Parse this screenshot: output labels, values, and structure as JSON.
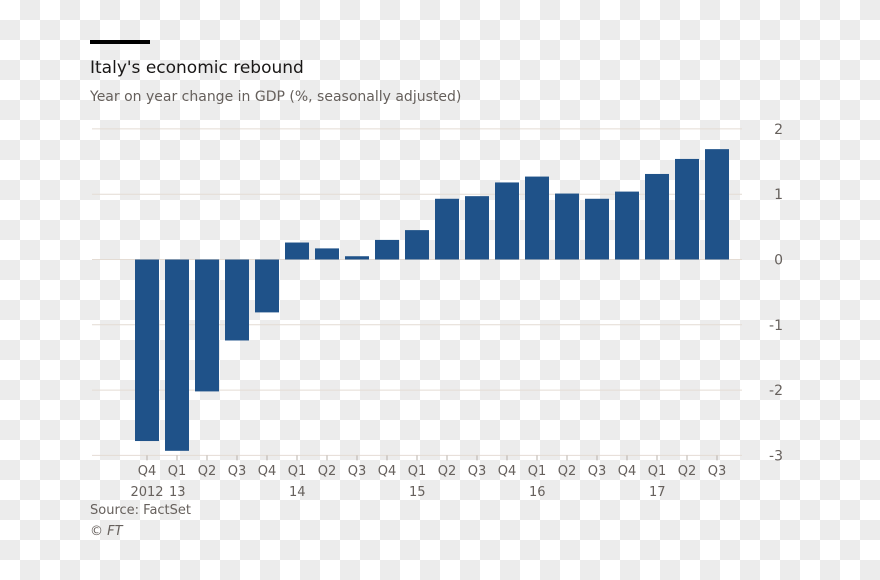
{
  "chart_data": {
    "type": "bar",
    "title": "Italy's economic rebound",
    "subtitle": "Year on year change in GDP (%, seasonally adjusted)",
    "xlabel": "",
    "ylabel": "",
    "ylim": [
      -3,
      2
    ],
    "yticks": [
      "2",
      "1",
      "0",
      "-1",
      "-2",
      "-3"
    ],
    "ytick_values": [
      2,
      1,
      0,
      -1,
      -2,
      -3
    ],
    "grid": true,
    "color": "#1f5289",
    "categories": [
      "Q4",
      "Q1",
      "Q2",
      "Q3",
      "Q4",
      "Q1",
      "Q2",
      "Q3",
      "Q4",
      "Q1",
      "Q2",
      "Q3",
      "Q4",
      "Q1",
      "Q2",
      "Q3",
      "Q4",
      "Q1",
      "Q2",
      "Q3"
    ],
    "year_labels": [
      "2012",
      "13",
      "",
      "",
      "",
      "14",
      "",
      "",
      "",
      "15",
      "",
      "",
      "",
      "16",
      "",
      "",
      "",
      "17",
      "",
      ""
    ],
    "values": [
      -2.78,
      -2.93,
      -2.02,
      -1.24,
      -0.81,
      0.26,
      0.17,
      0.05,
      0.3,
      0.45,
      0.93,
      0.97,
      1.18,
      1.27,
      1.01,
      0.93,
      1.04,
      1.31,
      1.54,
      1.69
    ]
  },
  "footer": {
    "source": "Source: FactSet",
    "copyright": "© FT"
  }
}
